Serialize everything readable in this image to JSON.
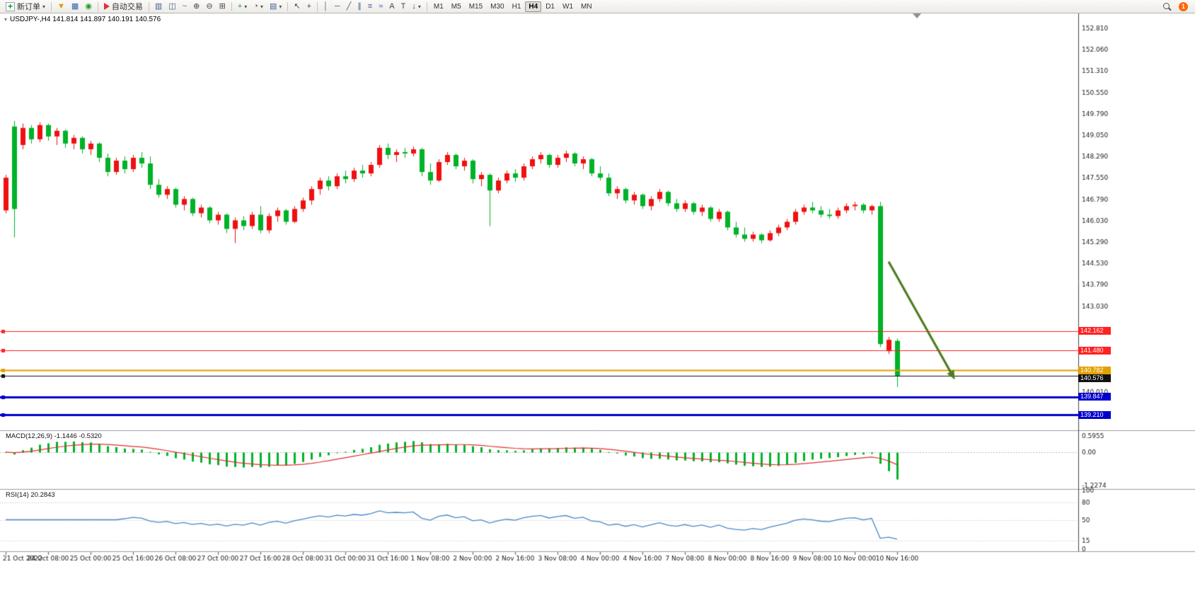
{
  "toolbar": {
    "new_order": "新订单",
    "auto_trading": "自动交易",
    "timeframes": [
      "M1",
      "M5",
      "M15",
      "M30",
      "H1",
      "H4",
      "D1",
      "W1",
      "MN"
    ],
    "active_timeframe": "H4",
    "notification_count": "1"
  },
  "icons": {
    "caret": "▾",
    "funnel": "▼",
    "market_watch": "▦",
    "navigator": "◉",
    "bars_chart": "▥",
    "candle_chart": "◫",
    "line_chart": "~",
    "zoom_in": "⊕",
    "zoom_out": "⊖",
    "tile": "⊞",
    "plus": "+",
    "clock": "◔",
    "template": "▤",
    "cursor": "↖",
    "crosshair": "+",
    "vline": "│",
    "hline": "─",
    "trendline": "╱",
    "channel": "∥",
    "fibonacci": "≡",
    "wave": "≈",
    "text": "A",
    "label": "T",
    "arrow_down": "↓"
  },
  "chart_header": {
    "symbol": "USDJPY-",
    "period": "H4",
    "open": "141.814",
    "high": "141.897",
    "low": "140.191",
    "close": "140.576",
    "title": "USDJPY-,H4  141.814 141.897 140.191 140.576"
  },
  "indicator_labels": {
    "macd": "MACD(12,26,9) -1.1446 -0.5320",
    "rsi": "RSI(14) 20.2843"
  },
  "price_axis": {
    "ticks": [
      "152.810",
      "152.060",
      "151.310",
      "150.550",
      "149.790",
      "149.050",
      "148.290",
      "147.550",
      "146.790",
      "146.030",
      "145.290",
      "144.530",
      "143.790",
      "143.030",
      "140.010"
    ],
    "tags": [
      {
        "value": "142.162",
        "color": "#ff2222"
      },
      {
        "value": "141.480",
        "color": "#ff2222"
      },
      {
        "value": "140.782",
        "color": "#e2a000"
      },
      {
        "value": "140.576",
        "color": "#111111"
      },
      {
        "value": "139.847",
        "color": "#0000cc"
      },
      {
        "value": "139.210",
        "color": "#0000cc"
      }
    ]
  },
  "macd_axis": [
    "0.5955",
    "0.00",
    "-1.2274"
  ],
  "rsi_axis": [
    "100",
    "80",
    "50",
    "15",
    "0"
  ],
  "time_axis": [
    "21 Oct 2022",
    "24 Oct 08:00",
    "25 Oct 00:00",
    "25 Oct 16:00",
    "26 Oct 08:00",
    "27 Oct 00:00",
    "27 Oct 16:00",
    "28 Oct 08:00",
    "31 Oct 00:00",
    "31 Oct 16:00",
    "1 Nov 08:00",
    "2 Nov 00:00",
    "2 Nov 16:00",
    "3 Nov 08:00",
    "4 Nov 00:00",
    "4 Nov 16:00",
    "7 Nov 08:00",
    "8 Nov 00:00",
    "8 Nov 16:00",
    "9 Nov 08:00",
    "10 Nov 00:00",
    "10 Nov 16:00"
  ],
  "chart_data": {
    "type": "candlestick",
    "symbol": "USDJPY-",
    "timeframe": "H4",
    "color_convention": "red-up-green-down",
    "bar_spacing": 12,
    "label_every_bars": 5,
    "panels": [
      {
        "name": "price",
        "type": "candlestick",
        "price_range_top": 153.35,
        "price_range_bottom": 138.67,
        "up_color": "#ee1111",
        "down_color": "#00b228",
        "candles": [
          [
            146.4,
            147.65,
            146.3,
            147.55
          ],
          [
            149.35,
            149.55,
            145.45,
            146.45
          ],
          [
            148.7,
            149.45,
            148.55,
            149.3
          ],
          [
            149.3,
            149.4,
            148.75,
            148.9
          ],
          [
            148.9,
            149.5,
            148.8,
            149.4
          ],
          [
            149.4,
            149.45,
            148.85,
            149.0
          ],
          [
            149.0,
            149.3,
            148.7,
            149.2
          ],
          [
            149.2,
            149.25,
            148.6,
            148.75
          ],
          [
            148.75,
            149.05,
            148.55,
            148.95
          ],
          [
            148.95,
            149.0,
            148.4,
            148.55
          ],
          [
            148.55,
            148.85,
            148.35,
            148.75
          ],
          [
            148.75,
            148.8,
            148.1,
            148.25
          ],
          [
            148.25,
            148.4,
            147.6,
            147.75
          ],
          [
            147.75,
            148.25,
            147.65,
            148.15
          ],
          [
            148.15,
            148.3,
            147.7,
            147.85
          ],
          [
            147.85,
            148.35,
            147.75,
            148.25
          ],
          [
            148.25,
            148.45,
            147.9,
            148.05
          ],
          [
            148.05,
            148.3,
            147.15,
            147.3
          ],
          [
            147.3,
            147.5,
            146.85,
            146.95
          ],
          [
            146.95,
            147.25,
            146.8,
            147.15
          ],
          [
            147.15,
            147.2,
            146.5,
            146.6
          ],
          [
            146.6,
            146.9,
            146.4,
            146.8
          ],
          [
            146.8,
            146.85,
            146.2,
            146.3
          ],
          [
            146.3,
            146.6,
            146.15,
            146.5
          ],
          [
            146.5,
            146.55,
            145.95,
            146.05
          ],
          [
            146.05,
            146.35,
            145.9,
            146.25
          ],
          [
            146.25,
            146.3,
            145.6,
            145.75
          ],
          [
            145.75,
            146.15,
            145.25,
            146.05
          ],
          [
            146.05,
            146.2,
            145.7,
            145.85
          ],
          [
            145.85,
            146.35,
            145.75,
            146.25
          ],
          [
            146.25,
            146.55,
            145.6,
            145.7
          ],
          [
            145.7,
            146.3,
            145.6,
            146.2
          ],
          [
            146.2,
            146.5,
            146.0,
            146.4
          ],
          [
            146.4,
            146.45,
            145.9,
            146.0
          ],
          [
            146.0,
            146.55,
            145.95,
            146.45
          ],
          [
            146.45,
            146.85,
            146.35,
            146.75
          ],
          [
            146.75,
            147.25,
            146.6,
            147.15
          ],
          [
            147.15,
            147.55,
            146.95,
            147.45
          ],
          [
            147.45,
            147.6,
            147.1,
            147.25
          ],
          [
            147.25,
            147.7,
            147.15,
            147.6
          ],
          [
            147.6,
            147.8,
            147.35,
            147.5
          ],
          [
            147.5,
            147.9,
            147.4,
            147.8
          ],
          [
            147.8,
            148.0,
            147.55,
            147.7
          ],
          [
            147.7,
            148.1,
            147.6,
            148.0
          ],
          [
            148.0,
            148.7,
            147.9,
            148.6
          ],
          [
            148.6,
            148.75,
            148.2,
            148.35
          ],
          [
            148.35,
            148.55,
            148.1,
            148.45
          ],
          [
            148.45,
            148.6,
            148.25,
            148.4
          ],
          [
            148.4,
            148.65,
            148.3,
            148.55
          ],
          [
            148.55,
            148.6,
            147.6,
            147.75
          ],
          [
            147.75,
            148.05,
            147.3,
            147.45
          ],
          [
            147.45,
            148.2,
            147.4,
            148.1
          ],
          [
            148.1,
            148.45,
            148.0,
            148.35
          ],
          [
            148.35,
            148.4,
            147.85,
            147.95
          ],
          [
            147.95,
            148.25,
            147.8,
            148.15
          ],
          [
            148.15,
            148.2,
            147.35,
            147.5
          ],
          [
            147.5,
            147.75,
            147.25,
            147.65
          ],
          [
            147.65,
            147.7,
            145.85,
            147.1
          ],
          [
            147.1,
            147.55,
            147.0,
            147.45
          ],
          [
            147.45,
            147.8,
            147.35,
            147.7
          ],
          [
            147.7,
            147.85,
            147.4,
            147.55
          ],
          [
            147.55,
            148.05,
            147.45,
            147.95
          ],
          [
            147.95,
            148.3,
            147.85,
            148.2
          ],
          [
            148.2,
            148.45,
            148.05,
            148.35
          ],
          [
            148.35,
            148.4,
            147.9,
            148.0
          ],
          [
            148.0,
            148.35,
            147.9,
            148.25
          ],
          [
            148.25,
            148.5,
            148.1,
            148.4
          ],
          [
            148.4,
            148.45,
            147.95,
            148.05
          ],
          [
            148.05,
            148.3,
            147.85,
            148.2
          ],
          [
            148.2,
            148.25,
            147.6,
            147.7
          ],
          [
            147.7,
            147.95,
            147.45,
            147.55
          ],
          [
            147.55,
            147.7,
            146.9,
            147.0
          ],
          [
            147.0,
            147.25,
            146.8,
            147.15
          ],
          [
            147.15,
            147.2,
            146.65,
            146.75
          ],
          [
            146.75,
            147.05,
            146.6,
            146.95
          ],
          [
            146.95,
            147.0,
            146.45,
            146.55
          ],
          [
            146.55,
            146.9,
            146.4,
            146.8
          ],
          [
            146.8,
            147.15,
            146.7,
            147.05
          ],
          [
            147.05,
            147.1,
            146.55,
            146.65
          ],
          [
            146.65,
            146.8,
            146.35,
            146.45
          ],
          [
            146.45,
            146.75,
            146.35,
            146.65
          ],
          [
            146.65,
            146.7,
            146.25,
            146.35
          ],
          [
            146.35,
            146.6,
            146.2,
            146.5
          ],
          [
            146.5,
            146.55,
            146.0,
            146.1
          ],
          [
            146.1,
            146.45,
            146.0,
            146.35
          ],
          [
            146.35,
            146.4,
            145.7,
            145.8
          ],
          [
            145.8,
            146.0,
            145.45,
            145.55
          ],
          [
            145.55,
            145.8,
            145.3,
            145.4
          ],
          [
            145.4,
            145.65,
            145.3,
            145.55
          ],
          [
            145.55,
            145.6,
            145.25,
            145.35
          ],
          [
            145.35,
            145.7,
            145.3,
            145.6
          ],
          [
            145.6,
            145.9,
            145.5,
            145.8
          ],
          [
            145.8,
            146.1,
            145.7,
            146.0
          ],
          [
            146.0,
            146.45,
            145.9,
            146.35
          ],
          [
            146.35,
            146.6,
            146.25,
            146.5
          ],
          [
            146.5,
            146.7,
            146.3,
            146.4
          ],
          [
            146.4,
            146.55,
            146.15,
            146.25
          ],
          [
            146.25,
            146.45,
            146.1,
            146.2
          ],
          [
            146.2,
            146.5,
            146.1,
            146.4
          ],
          [
            146.4,
            146.65,
            146.3,
            146.55
          ],
          [
            146.55,
            146.7,
            146.4,
            146.6
          ],
          [
            146.6,
            146.65,
            146.3,
            146.4
          ],
          [
            146.4,
            146.6,
            146.25,
            146.55
          ],
          [
            146.55,
            146.7,
            141.6,
            141.7
          ],
          [
            141.45,
            141.95,
            141.35,
            141.85
          ],
          [
            141.814,
            141.897,
            140.191,
            140.576
          ]
        ],
        "hlines": [
          {
            "price": 142.162,
            "color": "#ff2222",
            "width": 1
          },
          {
            "price": 141.48,
            "color": "#ff2222",
            "width": 1
          },
          {
            "price": 140.782,
            "color": "#e2a000",
            "width": 2
          },
          {
            "price": 140.576,
            "color": "#111111",
            "width": 1
          },
          {
            "price": 139.847,
            "color": "#0000cc",
            "width": 3
          },
          {
            "price": 139.21,
            "color": "#0000cc",
            "width": 3
          }
        ],
        "arrow": {
          "from_bar": 104,
          "from_price": 144.6,
          "to_bar": 111.8,
          "to_price": 140.45,
          "color": "#4e7d1e"
        }
      },
      {
        "name": "macd",
        "type": "macd",
        "fast": 12,
        "slow": 26,
        "signal": 9,
        "current_macd": -1.1446,
        "current_signal": -0.532,
        "range": [
          -1.3,
          0.7
        ],
        "histogram_color": "#00b228",
        "signal_color": "#e03131"
      },
      {
        "name": "rsi",
        "type": "rsi",
        "period": 14,
        "current": 20.2843,
        "range": [
          0,
          100
        ],
        "levels": [
          80,
          50,
          15
        ],
        "line_color": "#4a86c8"
      }
    ]
  }
}
